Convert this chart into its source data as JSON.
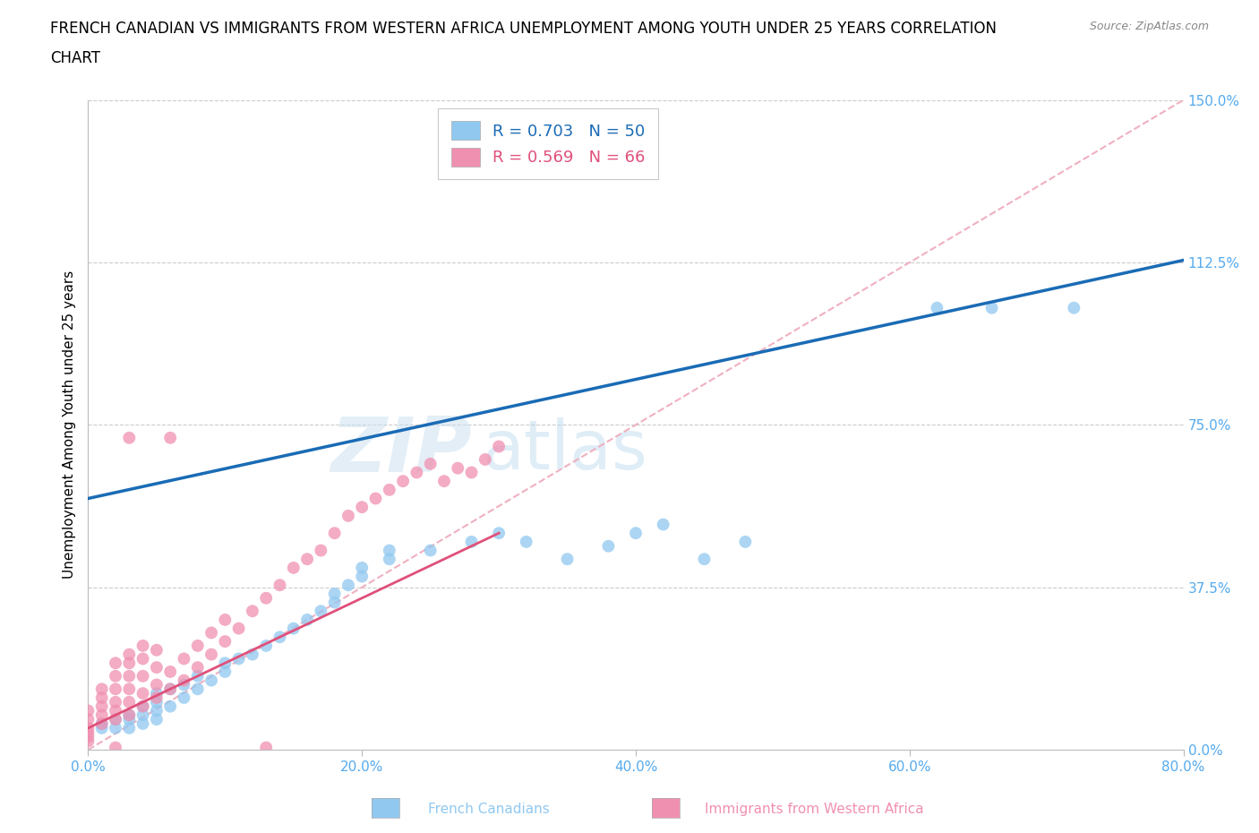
{
  "title_line1": "FRENCH CANADIAN VS IMMIGRANTS FROM WESTERN AFRICA UNEMPLOYMENT AMONG YOUTH UNDER 25 YEARS CORRELATION",
  "title_line2": "CHART",
  "source": "Source: ZipAtlas.com",
  "ylabel": "Unemployment Among Youth under 25 years",
  "xmin": 0.0,
  "xmax": 80.0,
  "ymin": 0.0,
  "ymax": 150.0,
  "xticks": [
    0.0,
    20.0,
    40.0,
    60.0,
    80.0
  ],
  "yticks": [
    0.0,
    37.5,
    75.0,
    112.5,
    150.0
  ],
  "french_canadians_color": "#90c8f0",
  "immigrants_color": "#f090b0",
  "french_canadians_R": 0.703,
  "french_canadians_N": 50,
  "immigrants_R": 0.569,
  "immigrants_N": 66,
  "french_line_color": "#1a6bb5",
  "immigrants_line_color": "#e0507a",
  "reference_line_color": "#f0b0c0",
  "legend_label_french": "French Canadians",
  "legend_label_immigrants": "Immigrants from Western Africa",
  "fc_x": [
    1,
    1,
    2,
    2,
    3,
    3,
    3,
    4,
    4,
    4,
    5,
    5,
    5,
    5,
    6,
    6,
    7,
    7,
    8,
    8,
    9,
    10,
    10,
    11,
    12,
    13,
    14,
    15,
    16,
    17,
    18,
    18,
    19,
    20,
    20,
    22,
    22,
    25,
    28,
    30,
    32,
    35,
    38,
    40,
    42,
    45,
    48,
    62,
    66,
    72
  ],
  "fc_y": [
    5,
    6,
    5,
    7,
    5,
    7,
    8,
    6,
    8,
    10,
    7,
    9,
    11,
    13,
    10,
    14,
    12,
    15,
    14,
    17,
    16,
    18,
    20,
    21,
    22,
    24,
    26,
    28,
    30,
    32,
    34,
    36,
    38,
    40,
    42,
    44,
    46,
    46,
    48,
    50,
    48,
    44,
    47,
    50,
    52,
    44,
    48,
    102,
    102,
    102
  ],
  "imm_x": [
    0,
    0,
    0,
    0,
    1,
    1,
    1,
    1,
    1,
    2,
    2,
    2,
    2,
    2,
    2,
    3,
    3,
    3,
    3,
    3,
    3,
    4,
    4,
    4,
    4,
    4,
    5,
    5,
    5,
    5,
    6,
    6,
    7,
    7,
    8,
    8,
    9,
    9,
    10,
    10,
    11,
    12,
    13,
    14,
    15,
    16,
    17,
    18,
    19,
    20,
    21,
    22,
    23,
    24,
    25,
    26,
    27,
    28,
    29,
    30,
    3,
    6,
    2,
    13,
    0,
    0
  ],
  "imm_y": [
    3,
    5,
    7,
    9,
    6,
    8,
    10,
    12,
    14,
    7,
    9,
    11,
    14,
    17,
    20,
    8,
    11,
    14,
    17,
    20,
    22,
    10,
    13,
    17,
    21,
    24,
    12,
    15,
    19,
    23,
    14,
    18,
    16,
    21,
    19,
    24,
    22,
    27,
    25,
    30,
    28,
    32,
    35,
    38,
    42,
    44,
    46,
    50,
    54,
    56,
    58,
    60,
    62,
    64,
    66,
    62,
    65,
    64,
    67,
    70,
    72,
    72,
    0.5,
    0.5,
    2,
    4
  ],
  "fc_line_x0": 0,
  "fc_line_x1": 80,
  "fc_line_y0": 58,
  "fc_line_y1": 113,
  "imm_line_x0": 0,
  "imm_line_x1": 30,
  "imm_line_y0": 5,
  "imm_line_y1": 50,
  "ref_line_x0": 0,
  "ref_line_x1": 80,
  "ref_line_y0": 0,
  "ref_line_y1": 150
}
